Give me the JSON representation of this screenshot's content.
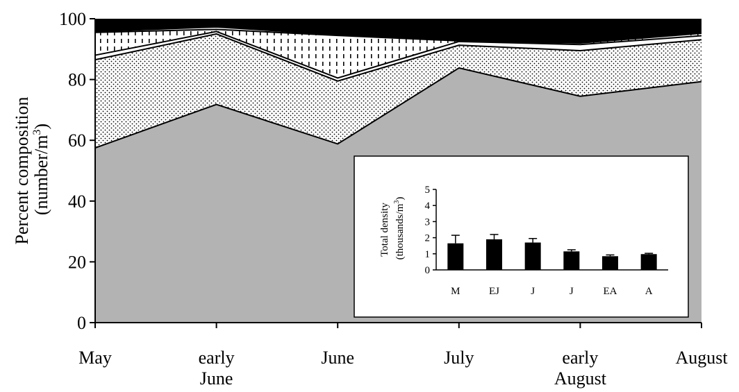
{
  "chart_data": [
    {
      "type": "area",
      "stacked": true,
      "ylabel": "Percent composition",
      "ylabel_units": "(number/m",
      "ylabel_units_sup": "3",
      "ylabel_units_close": ")",
      "ylim": [
        0,
        100
      ],
      "yticks": [
        0,
        20,
        40,
        60,
        80,
        100
      ],
      "x_labels": [
        [
          "May"
        ],
        [
          "early",
          "June"
        ],
        [
          "June"
        ],
        [
          "July"
        ],
        [
          "early",
          "August"
        ],
        [
          "August"
        ]
      ],
      "series": [
        {
          "values": [
            57.5,
            71.8,
            58.8,
            83.8,
            74.5,
            79.3
          ],
          "fill": "#b3b3b3",
          "pattern": "solid-gray"
        },
        {
          "values": [
            29.0,
            23.2,
            20.7,
            7.5,
            15.0,
            13.8
          ],
          "fill": "#ffffff",
          "pattern": "dots"
        },
        {
          "values": [
            1.5,
            0.8,
            1.0,
            1.2,
            2.0,
            1.3
          ],
          "fill": "#ffffff",
          "pattern": "plain"
        },
        {
          "values": [
            7.5,
            0.7,
            14.0,
            0.2,
            0.5,
            0.8
          ],
          "fill": "#ffffff",
          "pattern": "dashes"
        },
        {
          "values": [
            0.3,
            0.8,
            0.2,
            0.2,
            0.3,
            0.3
          ],
          "fill": "#ffffff",
          "pattern": "plain"
        },
        {
          "values": [
            4.2,
            2.7,
            5.3,
            7.1,
            7.7,
            4.5
          ],
          "fill": "#000000",
          "pattern": "solid-black"
        }
      ]
    },
    {
      "type": "bar",
      "inset": true,
      "ylabel_line1": "Total density",
      "ylabel_line2": "(thousands/m",
      "ylabel_line2_sup": "3",
      "ylabel_line2_close": ")",
      "ylim": [
        0,
        5
      ],
      "yticks": [
        0,
        1,
        2,
        3,
        4,
        5
      ],
      "categories": [
        "M",
        "EJ",
        "J",
        "J",
        "EA",
        "A"
      ],
      "values": [
        1.65,
        1.9,
        1.7,
        1.15,
        0.85,
        0.98
      ],
      "errors": [
        0.5,
        0.3,
        0.25,
        0.1,
        0.08,
        0.05
      ],
      "bar_color": "#000000"
    }
  ]
}
